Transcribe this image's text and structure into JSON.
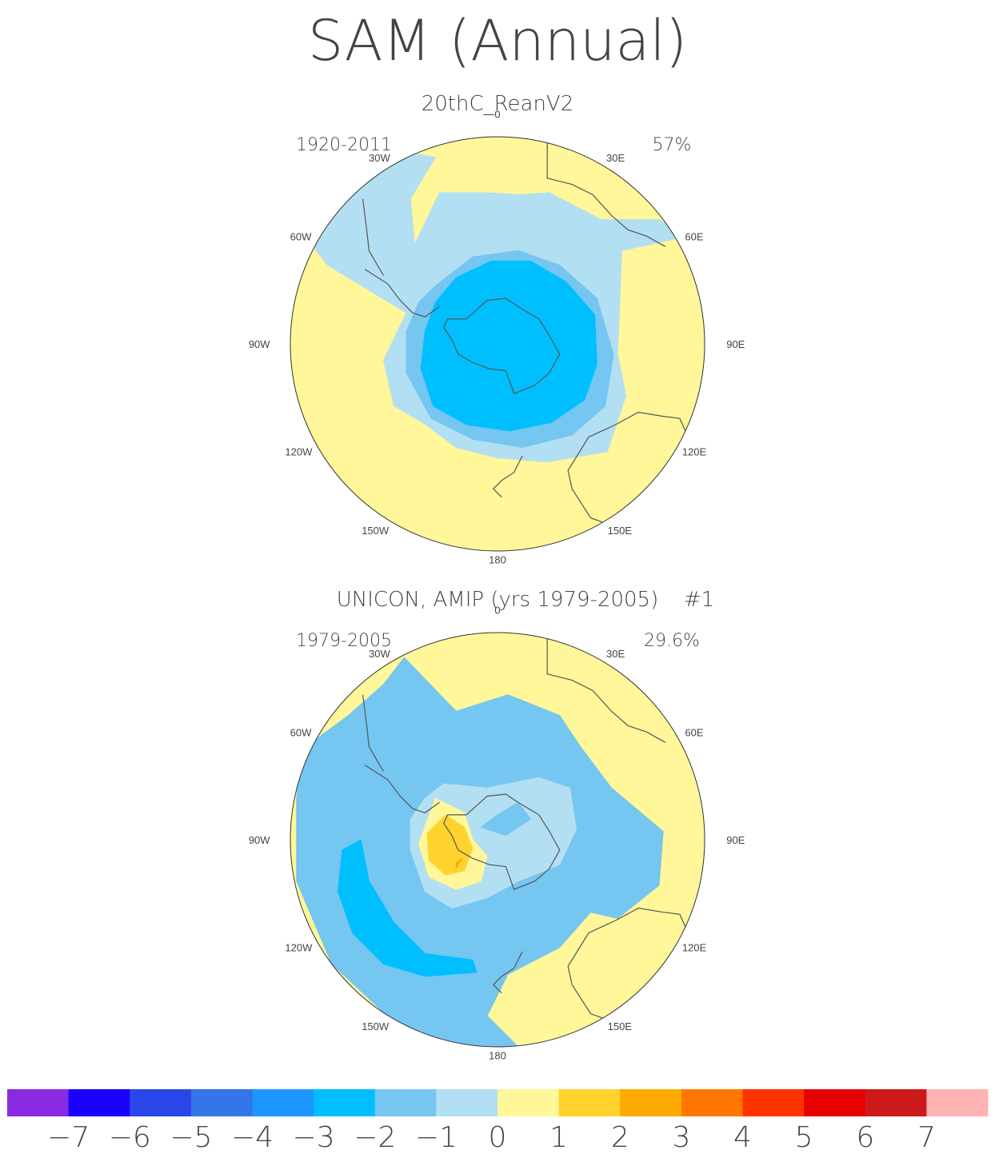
{
  "chart_data": [
    {
      "type": "contour_map",
      "projection": "south polar stereographic",
      "title": "SAM (Annual)",
      "panels": [
        {
          "subtitle": "20thC_ReanV2",
          "period": "1920-2011",
          "variance": "57%",
          "tag": "",
          "pattern_summary": {
            "center_value": -3,
            "center_band": [
              -3,
              -2
            ],
            "midlat_ring_value": 0,
            "min_level": -3,
            "max_level": 1
          }
        },
        {
          "subtitle": "UNICON, AMIP (yrs 1979-2005)",
          "period": "1979-2005",
          "variance": "29.6%",
          "tag": "#1",
          "pattern_summary": {
            "center_value": 1,
            "max_over_amundsen_sea": 3,
            "min_pacific_band": -1,
            "min_level": -2,
            "max_level": 3
          }
        }
      ],
      "lon_labels": [
        "0",
        "30E",
        "60E",
        "90E",
        "120E",
        "150E",
        "180",
        "150W",
        "120W",
        "90W",
        "60W",
        "30W"
      ],
      "colorbar": {
        "levels": [
          "-7",
          "-6",
          "-5",
          "-4",
          "-3",
          "-2",
          "-1",
          "0",
          "1",
          "2",
          "3",
          "4",
          "5",
          "6",
          "7"
        ],
        "colors": [
          "#8a2be2",
          "#1a00ff",
          "#2a46e8",
          "#3475e8",
          "#1e96ff",
          "#00bfff",
          "#75c6f1",
          "#b3dff2",
          "#fff799",
          "#ffd32e",
          "#ffaa00",
          "#ff7700",
          "#ff3300",
          "#e80000",
          "#cc1a1a",
          "#ffb3b3"
        ]
      }
    }
  ]
}
